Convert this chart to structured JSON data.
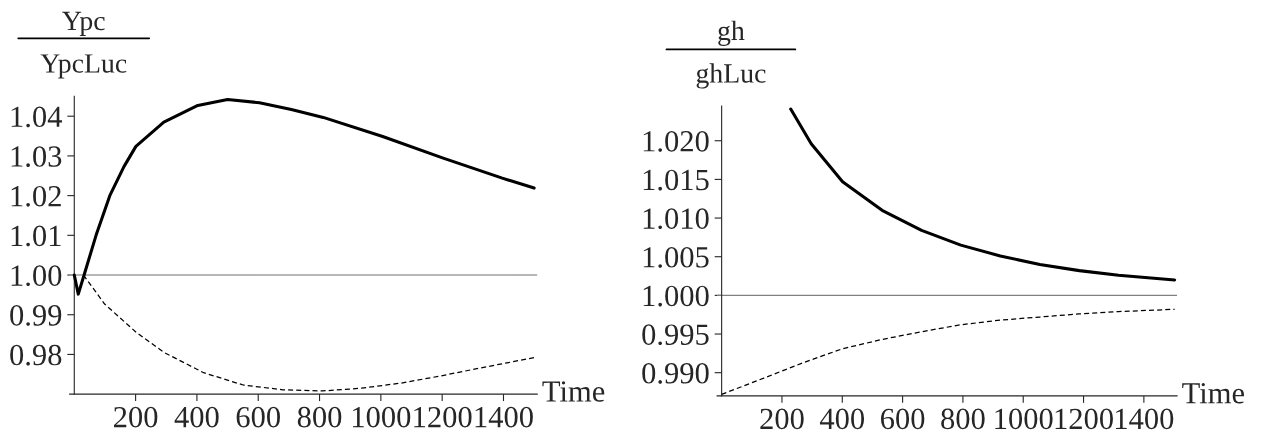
{
  "chart_data": [
    {
      "type": "line",
      "ylabel": "Ypc\nYpcLuc",
      "xlabel": "Time",
      "xlim": [
        -15,
        1510
      ],
      "ylim": [
        0.97,
        1.045
      ],
      "xticks": [
        200,
        400,
        600,
        800,
        1000,
        1200,
        1400
      ],
      "yticks": [
        {
          "value": 0.98,
          "label": "0.98"
        },
        {
          "value": 0.99,
          "label": "0.99"
        },
        {
          "value": 1.0,
          "label": "1.00"
        },
        {
          "value": 1.01,
          "label": "1.01"
        },
        {
          "value": 1.02,
          "label": "1.02"
        },
        {
          "value": 1.03,
          "label": "1.03"
        },
        {
          "value": 1.04,
          "label": "1.04"
        }
      ],
      "grid": false,
      "ref_lines": [
        {
          "axis": "y",
          "value": 1.0,
          "color": "#a0a0a0"
        }
      ],
      "series": [
        {
          "color": "#000000",
          "line_style": "solid",
          "x": [
            0,
            13,
            32,
            71,
            117,
            162,
            201,
            292,
            403,
            500,
            604,
            708,
            812,
            1006,
            1201,
            1396,
            1500
          ],
          "values": [
            1.0,
            0.9952,
            1.0,
            1.01,
            1.0202,
            1.0273,
            1.0324,
            1.0385,
            1.0427,
            1.0442,
            1.0434,
            1.0417,
            1.0397,
            1.0349,
            1.0295,
            1.0244,
            1.0219
          ]
        },
        {
          "color": "#000000",
          "line_style": "dashed",
          "x": [
            30,
            99,
            203,
            293,
            422,
            551,
            680,
            809,
            938,
            1067,
            1196,
            1325,
            1500
          ],
          "values": [
            1.0,
            0.9927,
            0.9855,
            0.9805,
            0.9754,
            0.9723,
            0.9711,
            0.9708,
            0.9715,
            0.9728,
            0.9746,
            0.9766,
            0.9792
          ]
        }
      ]
    },
    {
      "type": "line",
      "ylabel": "gh\nghLuc",
      "xlabel": "Time",
      "xlim": [
        -15,
        1510
      ],
      "ylim": [
        0.987,
        1.0245
      ],
      "xticks": [
        200,
        400,
        600,
        800,
        1000,
        1200,
        1400
      ],
      "yticks": [
        {
          "value": 0.99,
          "label": "0.990"
        },
        {
          "value": 0.995,
          "label": "0.995"
        },
        {
          "value": 1.0,
          "label": "1.000"
        },
        {
          "value": 1.005,
          "label": "1.005"
        },
        {
          "value": 1.01,
          "label": "1.010"
        },
        {
          "value": 1.015,
          "label": "1.015"
        },
        {
          "value": 1.02,
          "label": "1.020"
        }
      ],
      "grid": false,
      "ref_lines": [
        {
          "axis": "y",
          "value": 1.0,
          "color": "#808080"
        }
      ],
      "series": [
        {
          "color": "#000000",
          "line_style": "solid",
          "x": [
            229,
            297,
            401,
            532,
            663,
            793,
            924,
            1055,
            1186,
            1316,
            1502
          ],
          "values": [
            1.0241,
            1.0196,
            1.0147,
            1.011,
            1.0084,
            1.0065,
            1.0051,
            1.004,
            1.0032,
            1.0026,
            1.002
          ]
        },
        {
          "color": "#000000",
          "line_style": "dashed",
          "x": [
            0,
            140,
            271,
            401,
            532,
            663,
            793,
            924,
            1055,
            1186,
            1316,
            1502
          ],
          "values": [
            0.9872,
            0.9893,
            0.9913,
            0.9931,
            0.9943,
            0.9953,
            0.9962,
            0.9968,
            0.9972,
            0.9976,
            0.9979,
            0.9982
          ]
        }
      ]
    }
  ]
}
